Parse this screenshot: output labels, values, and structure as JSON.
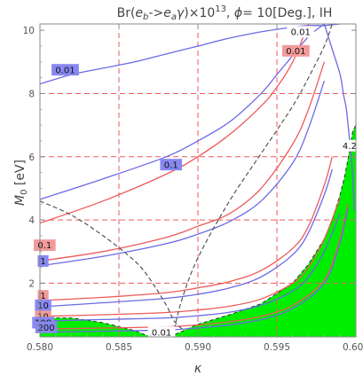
{
  "chart_data": {
    "type": "contour",
    "title": "Br(e_b->e_a γ)×10^13, ϕ= 10[Deg.], IH",
    "title_parts": {
      "prefix": "Br(",
      "e1": "e",
      "b": "b",
      "arrow": "->",
      "e2": "e",
      "a": "a",
      "gamma": "γ",
      "times": ")×10",
      "exp": "13",
      "comma": ", ",
      "phi": "ϕ",
      "rest": "= 10[Deg.], IH"
    },
    "xlabel": "κ",
    "ylabel": "M_0 [eV]",
    "ylabel_parts": {
      "m": "M",
      "sub": "0",
      "unit": " [eV]"
    },
    "xlim": [
      0.58,
      0.6
    ],
    "ylim": [
      0.3,
      10.2
    ],
    "xticks": [
      "0.580",
      "0.585",
      "0.590",
      "0.595",
      "0.600"
    ],
    "yticks": [
      "2",
      "4",
      "6",
      "8",
      "10"
    ],
    "reference_lines": {
      "x": [
        0.585,
        0.59,
        0.595
      ],
      "y": [
        2,
        4,
        6,
        8
      ]
    },
    "colors": {
      "blue": "#6a6ae6",
      "red": "#ee5a5a",
      "black_dashed": "#555555",
      "green": "#00ee00",
      "grid": "#ee5a5a",
      "blue_label_bg": "#8888f2",
      "red_label_bg": "#f29a9a"
    },
    "series": [
      {
        "color": "blue",
        "x": [
          0.58,
          0.582,
          0.584,
          0.586,
          0.588,
          0.59,
          0.592,
          0.594,
          0.596,
          0.597,
          0.598,
          0.599
        ],
        "y": [
          8.3,
          8.6,
          8.8,
          9.0,
          9.25,
          9.5,
          9.75,
          9.95,
          10.1,
          10.15,
          10.15,
          10.2
        ]
      },
      {
        "color": "red",
        "x": [
          0.58,
          0.584,
          0.588,
          0.59,
          0.592,
          0.594,
          0.595,
          0.596,
          0.597
        ],
        "y": [
          3.9,
          4.6,
          5.45,
          6.0,
          6.7,
          7.6,
          8.2,
          9.0,
          10.2
        ]
      },
      {
        "color": "blue",
        "x": [
          0.58,
          0.584,
          0.588,
          0.59,
          0.592,
          0.594,
          0.595,
          0.596,
          0.597,
          0.598
        ],
        "y": [
          4.65,
          5.3,
          6.0,
          6.5,
          7.1,
          8.0,
          8.6,
          9.2,
          9.8,
          10.2
        ]
      },
      {
        "color": "red",
        "x": [
          0.58,
          0.584,
          0.588,
          0.59,
          0.592,
          0.594,
          0.596,
          0.597,
          0.598
        ],
        "y": [
          2.7,
          3.0,
          3.45,
          3.8,
          4.2,
          5.0,
          6.4,
          7.5,
          9.0
        ]
      },
      {
        "color": "blue",
        "x": [
          0.58,
          0.584,
          0.588,
          0.59,
          0.592,
          0.594,
          0.596,
          0.597,
          0.598
        ],
        "y": [
          2.55,
          2.85,
          3.25,
          3.55,
          3.95,
          4.6,
          5.8,
          6.9,
          8.4
        ]
      },
      {
        "color": "red",
        "x": [
          0.58,
          0.584,
          0.588,
          0.59,
          0.592,
          0.594,
          0.596,
          0.597,
          0.598,
          0.5985
        ],
        "y": [
          1.45,
          1.55,
          1.7,
          1.85,
          2.05,
          2.4,
          3.1,
          3.8,
          5.1,
          6.0
        ]
      },
      {
        "color": "blue",
        "x": [
          0.58,
          0.584,
          0.588,
          0.59,
          0.592,
          0.594,
          0.596,
          0.597,
          0.598,
          0.5985
        ],
        "y": [
          1.25,
          1.38,
          1.52,
          1.65,
          1.85,
          2.2,
          2.9,
          3.6,
          4.8,
          5.6
        ]
      },
      {
        "color": "red",
        "x": [
          0.58,
          0.584,
          0.588,
          0.59,
          0.592,
          0.594,
          0.596,
          0.597,
          0.598,
          0.599
        ],
        "y": [
          0.95,
          1.0,
          1.07,
          1.15,
          1.27,
          1.5,
          2.0,
          2.5,
          3.4,
          4.7
        ]
      },
      {
        "color": "blue",
        "x": [
          0.58,
          0.584,
          0.588,
          0.59,
          0.592,
          0.594,
          0.596,
          0.597,
          0.598,
          0.599
        ],
        "y": [
          0.8,
          0.85,
          0.9,
          0.97,
          1.08,
          1.3,
          1.75,
          2.2,
          3.0,
          4.2
        ]
      },
      {
        "color": "red",
        "x": [
          0.58,
          0.584,
          0.588,
          0.59,
          0.592,
          0.594,
          0.596,
          0.598,
          0.599,
          0.5995
        ],
        "y": [
          0.55,
          0.58,
          0.62,
          0.68,
          0.78,
          0.95,
          1.3,
          2.1,
          3.4,
          4.5
        ]
      },
      {
        "color": "blue",
        "x": [
          0.58,
          0.584,
          0.588,
          0.59,
          0.592,
          0.594,
          0.596,
          0.598,
          0.599,
          0.5995
        ],
        "y": [
          0.45,
          0.48,
          0.52,
          0.58,
          0.68,
          0.85,
          1.2,
          2.0,
          3.3,
          4.4
        ]
      },
      {
        "color": "blue",
        "x": [
          0.598,
          0.5985,
          0.599,
          0.5992,
          0.5994,
          0.5996,
          0.5998,
          0.5999
        ],
        "y": [
          10.2,
          9.4,
          8.6,
          8.0,
          7.5,
          6.5,
          5.4,
          4.3
        ]
      },
      {
        "color": "black_dashed",
        "x": [
          0.58,
          0.582,
          0.584,
          0.586,
          0.587,
          0.588,
          0.5885,
          0.589
        ],
        "y": [
          4.6,
          4.15,
          3.5,
          2.7,
          2.1,
          1.3,
          0.8,
          0.55
        ]
      },
      {
        "color": "black_dashed",
        "x": [
          0.5885,
          0.589,
          0.59,
          0.592,
          0.594,
          0.596,
          0.597,
          0.598,
          0.5985
        ],
        "y": [
          0.55,
          1.5,
          2.8,
          4.6,
          6.1,
          7.6,
          8.5,
          9.5,
          10.2
        ]
      }
    ],
    "green_regions": [
      {
        "x": [
          0.58,
          0.5805,
          0.582,
          0.584,
          0.586,
          0.587,
          0.586,
          0.584,
          0.582,
          0.58
        ],
        "y": [
          0.45,
          0.9,
          0.9,
          0.75,
          0.5,
          0.3,
          0.3,
          0.3,
          0.3,
          0.3
        ]
      },
      {
        "x": [
          0.5882,
          0.59,
          0.592,
          0.594,
          0.596,
          0.597,
          0.598,
          0.5985,
          0.599,
          0.5993,
          0.5996,
          0.5998,
          0.6,
          0.6
        ],
        "y": [
          0.3,
          0.7,
          1.0,
          1.35,
          2.0,
          2.6,
          3.4,
          4.0,
          4.8,
          5.4,
          6.2,
          6.8,
          7.0,
          0.3
        ]
      }
    ],
    "contour_labels": [
      {
        "text": "0.01",
        "x": 0.5816,
        "y": 8.75,
        "bg": "blue"
      },
      {
        "text": "0.01",
        "x": 0.5962,
        "y": 9.35,
        "bg": "red"
      },
      {
        "text": "0.01",
        "x": 0.5965,
        "y": 9.95,
        "bg": "none"
      },
      {
        "text": "0.1",
        "x": 0.5883,
        "y": 5.75,
        "bg": "blue"
      },
      {
        "text": "4.2",
        "x": 0.5996,
        "y": 6.35,
        "bg": "none"
      },
      {
        "text": "0.1",
        "x": 0.5803,
        "y": 3.2,
        "bg": "red"
      },
      {
        "text": "1",
        "x": 0.5802,
        "y": 2.7,
        "bg": "blue"
      },
      {
        "text": "1",
        "x": 0.5802,
        "y": 1.6,
        "bg": "red"
      },
      {
        "text": "10",
        "x": 0.5802,
        "y": 1.3,
        "bg": "blue"
      },
      {
        "text": "10",
        "x": 0.5802,
        "y": 0.95,
        "bg": "red"
      },
      {
        "text": "100",
        "x": 0.5802,
        "y": 0.75,
        "bg": "blue"
      },
      {
        "text": "200",
        "x": 0.5804,
        "y": 0.6,
        "bg": "blue"
      },
      {
        "text": "0.01",
        "x": 0.5877,
        "y": 0.45,
        "bg": "none"
      }
    ]
  }
}
